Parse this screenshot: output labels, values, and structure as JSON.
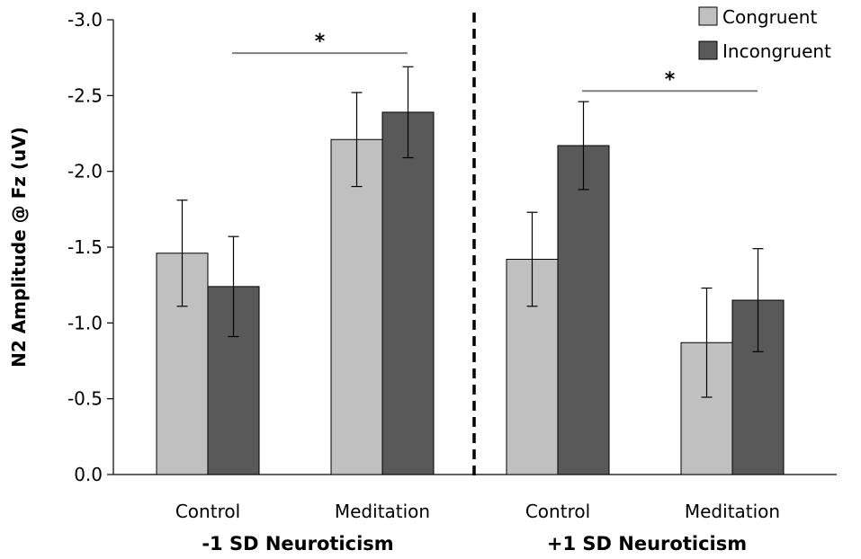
{
  "chart_data": {
    "type": "bar",
    "ylabel": "N2 Amplitude @ Fz (uV)",
    "ylim": [
      0,
      -3.0
    ],
    "y_reversed": true,
    "yticks": [
      "0.0",
      "-0.5",
      "-1.0",
      "-1.5",
      "-2.0",
      "-2.5",
      "-3.0"
    ],
    "ytick_values": [
      0,
      -0.5,
      -1.0,
      -1.5,
      -2.0,
      -2.5,
      -3.0
    ],
    "legend_position": "top-right",
    "colors": {
      "Congruent": "#c0c0c0",
      "Incongruent": "#595959"
    },
    "groups": [
      {
        "label": "-1 SD Neuroticism",
        "categories": [
          "Control",
          "Meditation"
        ]
      },
      {
        "label": "+1 SD Neuroticism",
        "categories": [
          "Control",
          "Meditation"
        ]
      }
    ],
    "categories": [
      "Control",
      "Meditation",
      "Control",
      "Meditation"
    ],
    "series": [
      {
        "name": "Congruent",
        "values": [
          -1.46,
          -2.21,
          -1.42,
          -0.87
        ],
        "errors": [
          0.35,
          0.31,
          0.31,
          0.36
        ]
      },
      {
        "name": "Incongruent",
        "values": [
          -1.24,
          -2.39,
          -2.17,
          -1.15
        ],
        "errors": [
          0.33,
          0.3,
          0.29,
          0.34
        ]
      }
    ],
    "annotations": [
      {
        "text": "*",
        "from_category": 0,
        "to_category": 1,
        "y": -2.78
      },
      {
        "text": "*",
        "from_category": 2,
        "to_category": 3,
        "y": -2.53
      }
    ]
  }
}
